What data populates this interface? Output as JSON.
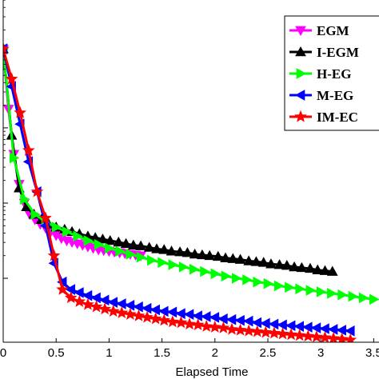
{
  "chart_data": {
    "type": "line",
    "xlabel": "Elapsed Time",
    "xticks": [
      "0",
      "0.5",
      "1",
      "1.5",
      "2",
      "2.5",
      "3",
      "3.5"
    ],
    "xlim": [
      0,
      3.55
    ],
    "ylog": true,
    "ylim_log10": [
      -4.85,
      -0.3
    ],
    "grid": false,
    "legend_placement": "top-right",
    "legend": [
      "EGM",
      "I-EGM",
      "H-EG",
      "M-EG",
      "IM-EC"
    ],
    "series": [
      {
        "name": "EGM",
        "color": "#ff00ff",
        "marker": "triangle-down",
        "x": [
          0.0,
          0.05,
          0.1,
          0.15,
          0.2,
          0.25,
          0.3,
          0.35,
          0.4,
          0.45,
          0.5,
          0.55,
          0.6,
          0.65,
          0.7,
          0.75,
          0.8,
          0.85,
          0.9,
          0.95,
          1.0,
          1.05,
          1.1,
          1.15,
          1.2,
          1.25,
          1.3
        ],
        "logy": [
          -0.95,
          -1.75,
          -2.35,
          -2.75,
          -3.0,
          -3.15,
          -3.22,
          -3.28,
          -3.33,
          -3.38,
          -3.43,
          -3.47,
          -3.5,
          -3.52,
          -3.54,
          -3.56,
          -3.58,
          -3.6,
          -3.62,
          -3.63,
          -3.64,
          -3.65,
          -3.66,
          -3.67,
          -3.68,
          -3.69,
          -3.7
        ]
      },
      {
        "name": "I-EGM",
        "color": "#000000",
        "marker": "triangle-up",
        "x": [
          0.0,
          0.08,
          0.15,
          0.22,
          0.29,
          0.36,
          0.43,
          0.5,
          0.58,
          0.65,
          0.72,
          0.8,
          0.87,
          0.94,
          1.01,
          1.09,
          1.16,
          1.23,
          1.3,
          1.38,
          1.45,
          1.52,
          1.59,
          1.67,
          1.74,
          1.81,
          1.88,
          1.95,
          2.03,
          2.1,
          2.17,
          2.24,
          2.32,
          2.39,
          2.46,
          2.53,
          2.61,
          2.68,
          2.75,
          2.82,
          2.9,
          2.97,
          3.04,
          3.11
        ],
        "logy": [
          -0.95,
          -2.1,
          -2.8,
          -3.05,
          -3.15,
          -3.22,
          -3.28,
          -3.32,
          -3.35,
          -3.38,
          -3.41,
          -3.44,
          -3.46,
          -3.48,
          -3.5,
          -3.52,
          -3.54,
          -3.56,
          -3.57,
          -3.59,
          -3.61,
          -3.62,
          -3.64,
          -3.65,
          -3.66,
          -3.68,
          -3.69,
          -3.7,
          -3.71,
          -3.73,
          -3.74,
          -3.75,
          -3.77,
          -3.78,
          -3.79,
          -3.81,
          -3.82,
          -3.83,
          -3.85,
          -3.86,
          -3.87,
          -3.89,
          -3.9,
          -3.91
        ]
      },
      {
        "name": "H-EG",
        "color": "#00ff00",
        "marker": "triangle-right",
        "x": [
          0.0,
          0.1,
          0.2,
          0.3,
          0.4,
          0.5,
          0.6,
          0.7,
          0.8,
          0.9,
          1.0,
          1.1,
          1.2,
          1.3,
          1.4,
          1.5,
          1.6,
          1.7,
          1.8,
          1.9,
          2.0,
          2.1,
          2.2,
          2.3,
          2.4,
          2.5,
          2.6,
          2.7,
          2.8,
          2.9,
          3.0,
          3.1,
          3.2,
          3.3,
          3.4,
          3.5
        ],
        "logy": [
          -0.95,
          -2.4,
          -2.95,
          -3.15,
          -3.25,
          -3.32,
          -3.38,
          -3.44,
          -3.5,
          -3.55,
          -3.6,
          -3.64,
          -3.68,
          -3.72,
          -3.76,
          -3.79,
          -3.82,
          -3.85,
          -3.88,
          -3.91,
          -3.94,
          -3.97,
          -4.0,
          -4.02,
          -4.05,
          -4.07,
          -4.1,
          -4.12,
          -4.14,
          -4.16,
          -4.18,
          -4.2,
          -4.22,
          -4.24,
          -4.26,
          -4.28
        ]
      },
      {
        "name": "M-EG",
        "color": "#0000ff",
        "marker": "triangle-left",
        "x": [
          0.0,
          0.08,
          0.16,
          0.24,
          0.32,
          0.4,
          0.48,
          0.56,
          0.64,
          0.72,
          0.8,
          0.88,
          0.96,
          1.04,
          1.12,
          1.2,
          1.28,
          1.36,
          1.44,
          1.52,
          1.6,
          1.68,
          1.76,
          1.84,
          1.92,
          2.0,
          2.08,
          2.16,
          2.24,
          2.32,
          2.4,
          2.48,
          2.56,
          2.64,
          2.72,
          2.8,
          2.88,
          2.96,
          3.04,
          3.12,
          3.2,
          3.28
        ],
        "logy": [
          -0.95,
          -1.45,
          -1.95,
          -2.45,
          -2.85,
          -3.3,
          -3.8,
          -4.05,
          -4.15,
          -4.19,
          -4.23,
          -4.26,
          -4.29,
          -4.32,
          -4.34,
          -4.36,
          -4.38,
          -4.4,
          -4.42,
          -4.44,
          -4.45,
          -4.47,
          -4.48,
          -4.5,
          -4.51,
          -4.52,
          -4.54,
          -4.55,
          -4.56,
          -4.57,
          -4.59,
          -4.6,
          -4.61,
          -4.62,
          -4.63,
          -4.64,
          -4.65,
          -4.66,
          -4.67,
          -4.68,
          -4.69,
          -4.7
        ]
      },
      {
        "name": "IM-EC",
        "color": "#ff0000",
        "marker": "star",
        "x": [
          0.0,
          0.08,
          0.16,
          0.24,
          0.32,
          0.4,
          0.48,
          0.56,
          0.64,
          0.72,
          0.8,
          0.88,
          0.96,
          1.04,
          1.12,
          1.2,
          1.28,
          1.36,
          1.44,
          1.52,
          1.6,
          1.68,
          1.76,
          1.84,
          1.92,
          2.0,
          2.08,
          2.16,
          2.24,
          2.32,
          2.4,
          2.48,
          2.56,
          2.64,
          2.72,
          2.8,
          2.88,
          2.96,
          3.04,
          3.12,
          3.2,
          3.28
        ],
        "logy": [
          -0.95,
          -1.35,
          -1.8,
          -2.3,
          -2.85,
          -3.2,
          -3.7,
          -4.15,
          -4.26,
          -4.31,
          -4.35,
          -4.38,
          -4.41,
          -4.44,
          -4.46,
          -4.48,
          -4.5,
          -4.52,
          -4.54,
          -4.56,
          -4.58,
          -4.59,
          -4.61,
          -4.62,
          -4.64,
          -4.65,
          -4.66,
          -4.68,
          -4.69,
          -4.7,
          -4.71,
          -4.72,
          -4.73,
          -4.74,
          -4.75,
          -4.76,
          -4.77,
          -4.78,
          -4.79,
          -4.8,
          -4.81,
          -4.82
        ]
      }
    ]
  }
}
